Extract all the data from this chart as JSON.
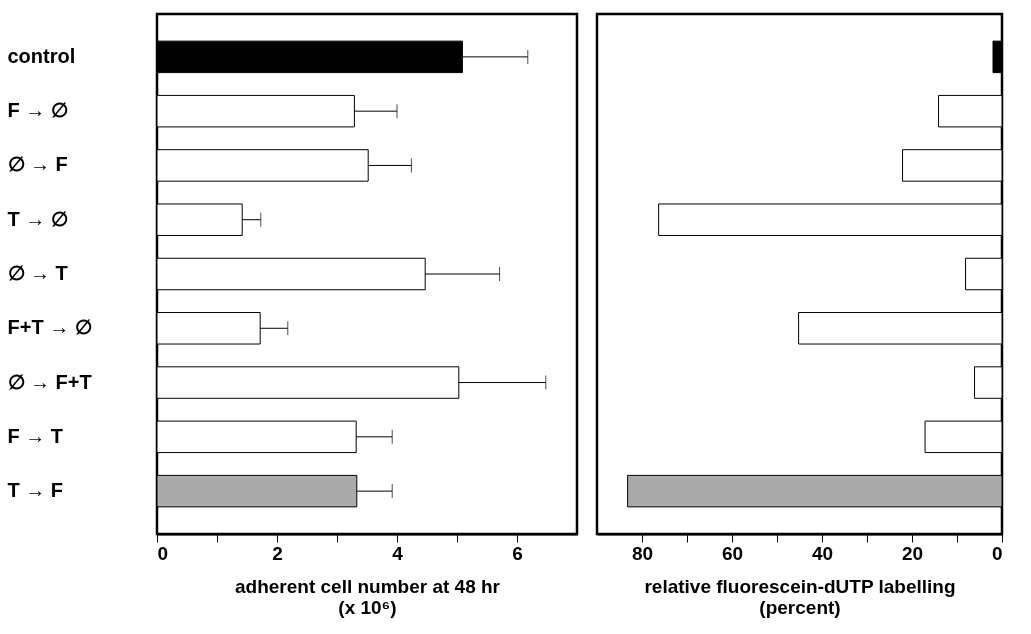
{
  "chart_data": [
    {
      "type": "bar",
      "orientation": "horizontal",
      "categories": [
        "control",
        "F → ∅",
        "∅ → F",
        "T → ∅",
        "∅ → T",
        "F+T → ∅",
        "∅ → F+T",
        "F → T",
        "T → F"
      ],
      "values": [
        5.09,
        3.29,
        3.52,
        1.42,
        4.47,
        1.72,
        5.03,
        3.32,
        3.33
      ],
      "errors": [
        [
          5.09,
          6.18
        ],
        [
          3.29,
          4.0
        ],
        [
          3.52,
          4.24
        ],
        [
          1.42,
          1.73
        ],
        [
          4.47,
          5.71
        ],
        [
          1.72,
          2.18
        ],
        [
          5.03,
          6.48
        ],
        [
          3.32,
          3.92
        ],
        [
          3.33,
          3.92
        ]
      ],
      "colors": [
        "#000000",
        "#ffffff",
        "#ffffff",
        "#ffffff",
        "#ffffff",
        "#ffffff",
        "#ffffff",
        "#ffffff",
        "#aaaaaa"
      ],
      "xlim": [
        0,
        7
      ],
      "xticks": [
        0,
        {
          "value": 1,
          "label": null
        },
        2,
        {
          "value": 3,
          "label": null
        },
        4,
        {
          "value": 5,
          "label": null
        },
        6
      ],
      "xlabel": "adherent cell number at 48 hr\n(x 10⁶)",
      "grid": false,
      "legend": false
    },
    {
      "type": "bar",
      "orientation": "horizontal",
      "categories": [
        "control",
        "F → ∅",
        "∅ → F",
        "T → ∅",
        "∅ → T",
        "F+T → ∅",
        "∅ → F+T",
        "F → T",
        "T → F"
      ],
      "values": [
        2.0,
        14.1,
        22.1,
        76.3,
        8.1,
        45.2,
        6.1,
        17.1,
        83.2
      ],
      "colors": [
        "#000000",
        "#ffffff",
        "#ffffff",
        "#ffffff",
        "#ffffff",
        "#ffffff",
        "#ffffff",
        "#ffffff",
        "#aaaaaa"
      ],
      "xlim": [
        90,
        0
      ],
      "xticks": [
        80,
        {
          "value": 70,
          "label": null
        },
        60,
        {
          "value": 50,
          "label": null
        },
        40,
        {
          "value": 30,
          "label": null
        },
        20,
        {
          "value": 10,
          "label": null
        },
        0
      ],
      "xlabel": "relative fluorescein-dUTP labelling\n(percent)",
      "tick_labels": "x",
      "grid": false,
      "legend": false
    }
  ]
}
